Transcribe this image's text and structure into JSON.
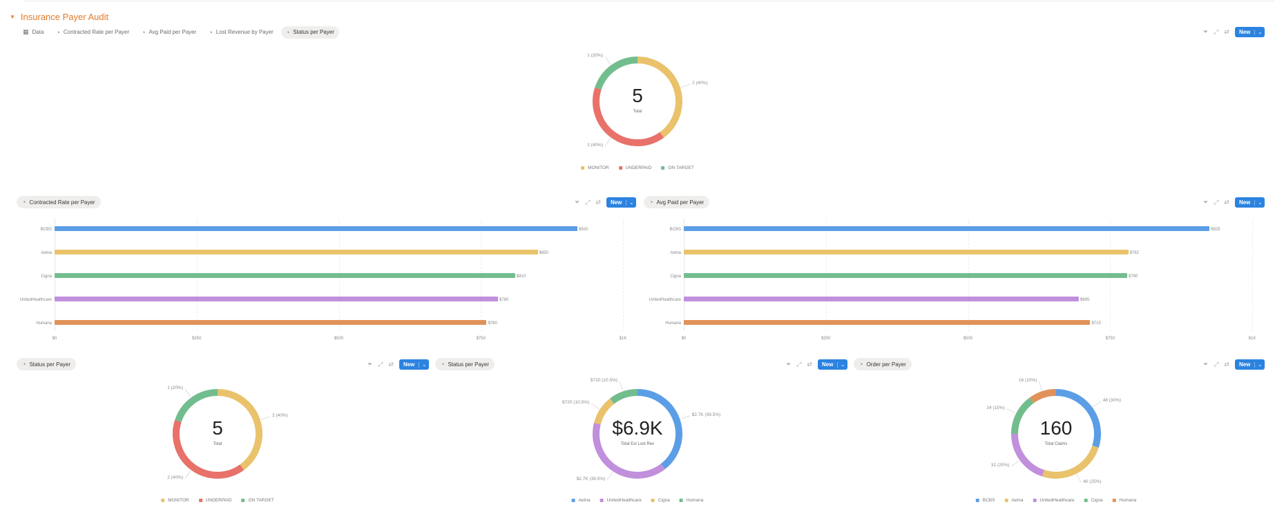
{
  "page": {
    "title": "Insurance Payer Audit"
  },
  "tabs": [
    {
      "label": "Data",
      "icon": "table-icon"
    },
    {
      "label": "Contracted Rate per Payer",
      "icon": "chart-icon"
    },
    {
      "label": "Avg Paid per Payer",
      "icon": "chart-icon"
    },
    {
      "label": "Lost Revenue by Payer",
      "icon": "chart-icon"
    },
    {
      "label": "Status per Payer",
      "icon": "chart-icon",
      "active": true
    }
  ],
  "toolbar": {
    "new_label": "New",
    "icons": [
      "filter-icon",
      "expand-icon",
      "sort-icon",
      "chevron-down-icon"
    ]
  },
  "colors": {
    "accent": "#e07a2a",
    "button": "#2b83e0",
    "blue": "#5b9ee6",
    "yellow": "#e9c26b",
    "green": "#72bd8e",
    "purple": "#c18fdc",
    "orange": "#e0925a",
    "red": "#e8716a"
  },
  "chart_data": [
    {
      "type": "pie",
      "donut": true,
      "center_value": "5",
      "center_label": "Total",
      "legend": "bottom",
      "slices": [
        {
          "label": "MONITOR",
          "value": 2,
          "display": "2 (40%)",
          "color": "#e9c26b"
        },
        {
          "label": "UNDERPAID",
          "value": 2,
          "display": "2 (40%)",
          "color": "#e8716a"
        },
        {
          "label": "ON TARGET",
          "value": 1,
          "display": "1 (20%)",
          "color": "#72bd8e"
        }
      ]
    },
    {
      "type": "bar",
      "orientation": "horizontal",
      "title": "Contracted Rate per Payer",
      "categories": [
        "BCBS",
        "Aetna",
        "Cigna",
        "UnitedHealthcare",
        "Humana"
      ],
      "values": [
        920,
        850,
        810,
        780,
        760
      ],
      "value_labels": [
        "$920",
        "$850",
        "$810",
        "$780",
        "$760"
      ],
      "colors": [
        "#5b9ee6",
        "#e9c26b",
        "#72bd8e",
        "#c18fdc",
        "#e0925a"
      ],
      "xlim": [
        0,
        1000
      ],
      "ticks": [
        "$0",
        "$250",
        "$500",
        "$750",
        "$1K"
      ],
      "grid": true
    },
    {
      "type": "bar",
      "orientation": "horizontal",
      "title": "Avg Paid per Payer",
      "categories": [
        "BCBS",
        "Aetna",
        "Cigna",
        "UnitedHealthcare",
        "Humana"
      ],
      "values": [
        925,
        782,
        780,
        695,
        715
      ],
      "value_labels": [
        "$925",
        "$782",
        "$780",
        "$695",
        "$715"
      ],
      "colors": [
        "#5b9ee6",
        "#e9c26b",
        "#72bd8e",
        "#c18fdc",
        "#e0925a"
      ],
      "xlim": [
        0,
        1000
      ],
      "ticks": [
        "$0",
        "$250",
        "$500",
        "$750",
        "$1K"
      ],
      "grid": true
    },
    {
      "type": "pie",
      "donut": true,
      "title": "Status per Payer",
      "center_value": "5",
      "center_label": "Total",
      "legend": "bottom",
      "slices": [
        {
          "label": "MONITOR",
          "value": 2,
          "display": "2 (40%)",
          "color": "#e9c26b"
        },
        {
          "label": "UNDERPAID",
          "value": 2,
          "display": "2 (40%)",
          "color": "#e8716a"
        },
        {
          "label": "ON TARGET",
          "value": 1,
          "display": "1 (20%)",
          "color": "#72bd8e"
        }
      ]
    },
    {
      "type": "pie",
      "donut": true,
      "title": "Status per Payer",
      "center_value": "$6.9K",
      "center_label": "Total Est Lost Rev",
      "legend": "bottom",
      "slices": [
        {
          "label": "Aetna",
          "value": 2700,
          "display": "$2.7K (39.5%)",
          "color": "#5b9ee6"
        },
        {
          "label": "UnitedHealthcare",
          "value": 2700,
          "display": "$2.7K (39.5%)",
          "color": "#c18fdc"
        },
        {
          "label": "Cigna",
          "value": 720,
          "display": "$720 (10.5%)",
          "color": "#e9c26b"
        },
        {
          "label": "Humana",
          "value": 720,
          "display": "$720 (10.5%)",
          "color": "#72bd8e"
        }
      ]
    },
    {
      "type": "pie",
      "donut": true,
      "title": "Order per Payer",
      "center_value": "160",
      "center_label": "Total Claims",
      "legend": "bottom",
      "slices": [
        {
          "label": "BCBS",
          "value": 48,
          "display": "48 (30%)",
          "color": "#5b9ee6"
        },
        {
          "label": "Aetna",
          "value": 40,
          "display": "40 (25%)",
          "color": "#e9c26b"
        },
        {
          "label": "UnitedHealthcare",
          "value": 32,
          "display": "32 (20%)",
          "color": "#c18fdc"
        },
        {
          "label": "Cigna",
          "value": 24,
          "display": "24 (15%)",
          "color": "#72bd8e"
        },
        {
          "label": "Humana",
          "value": 16,
          "display": "16 (10%)",
          "color": "#e0925a"
        }
      ]
    }
  ]
}
